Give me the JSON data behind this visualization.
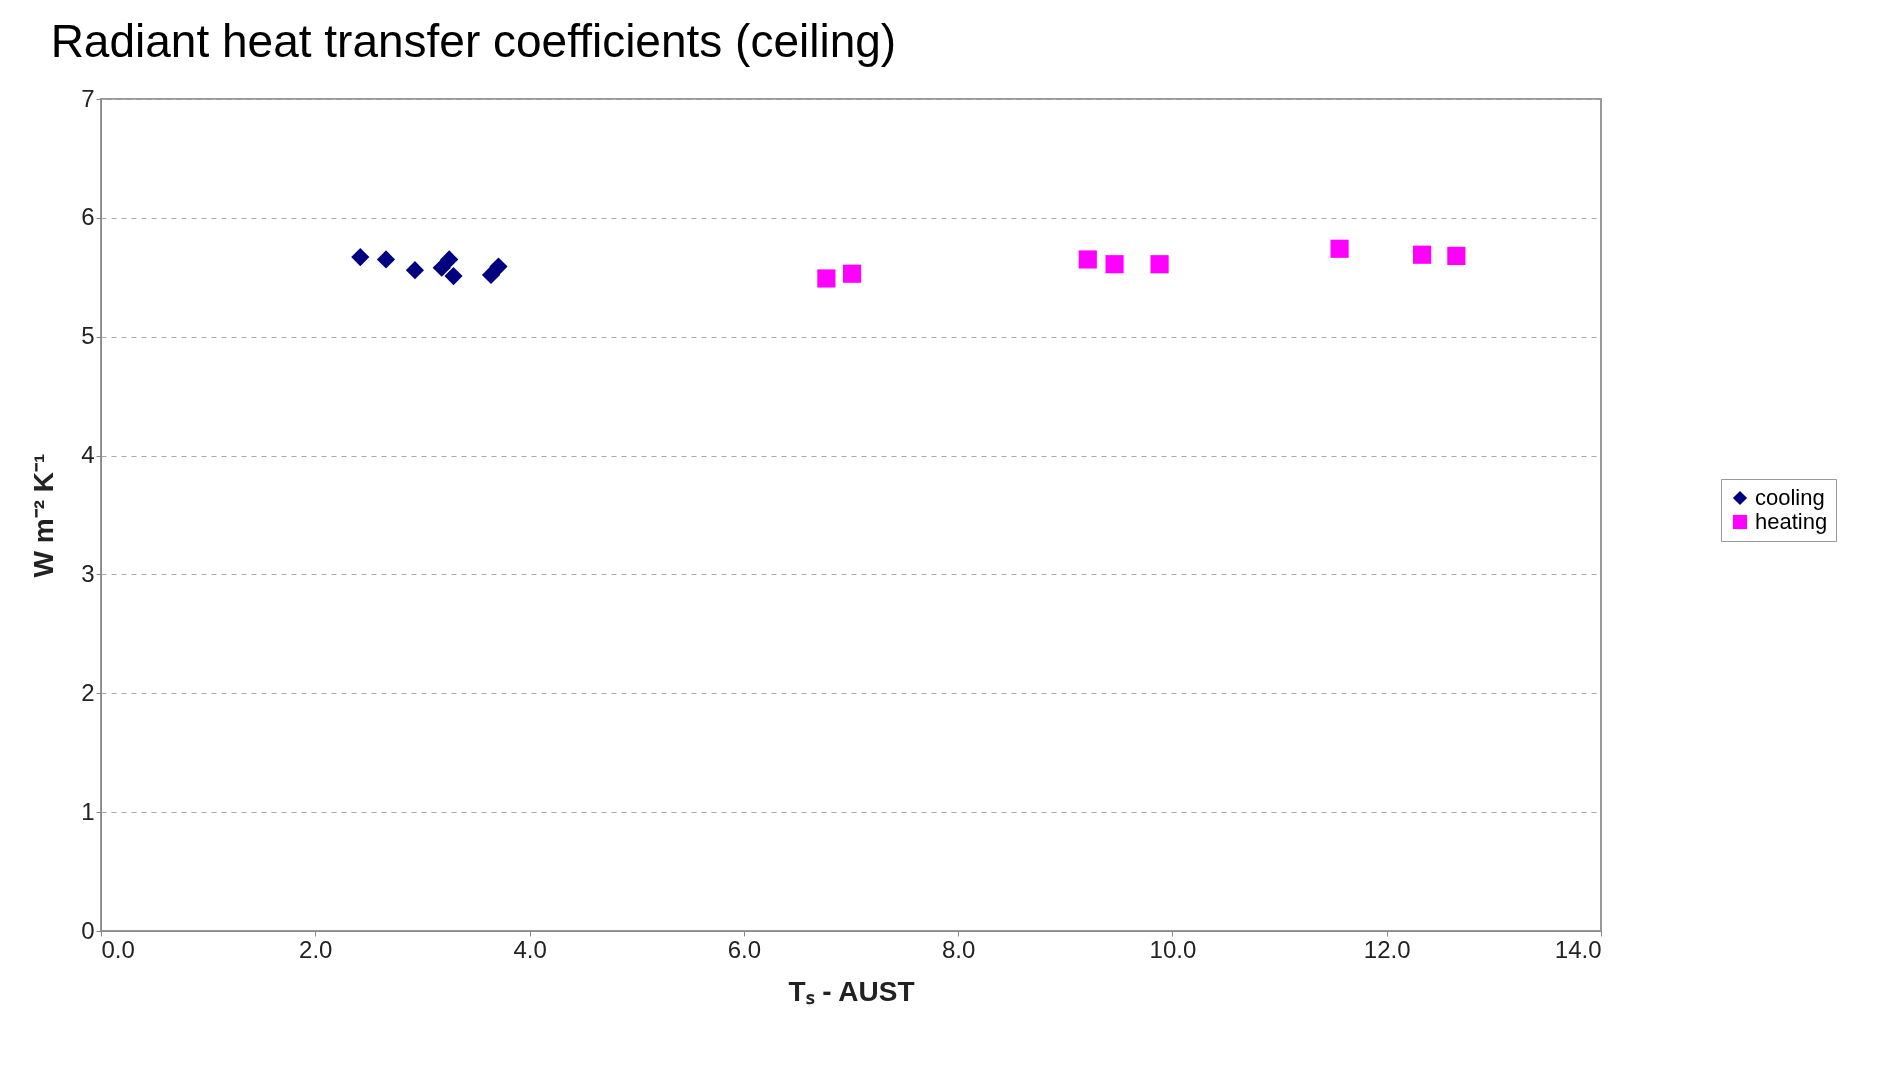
{
  "chart_data": {
    "type": "scatter",
    "title": "Radiant heat transfer coefficients (ceiling)",
    "xlabel": "Tₛ - AUST",
    "ylabel": "W m⁻² K⁻¹",
    "series": [
      {
        "name": "cooling",
        "color": "#000080",
        "marker": "diamond",
        "x": [
          2.42,
          2.66,
          2.93,
          3.18,
          3.25,
          3.29,
          3.64,
          3.71
        ],
        "values": [
          5.67,
          5.65,
          5.56,
          5.58,
          5.65,
          5.51,
          5.52,
          5.59
        ]
      },
      {
        "name": "heating",
        "color": "#ff00ff",
        "marker": "square",
        "x": [
          6.77,
          7.01,
          9.21,
          9.46,
          9.88,
          11.56,
          12.33,
          12.65
        ],
        "values": [
          5.49,
          5.53,
          5.65,
          5.61,
          5.61,
          5.74,
          5.69,
          5.68
        ]
      }
    ],
    "xlim": [
      0,
      14
    ],
    "xticks": [
      {
        "value": 0,
        "label": "0.0"
      },
      {
        "value": 2,
        "label": "2.0"
      },
      {
        "value": 4,
        "label": "4.0"
      },
      {
        "value": 6,
        "label": "6.0"
      },
      {
        "value": 8,
        "label": "8.0"
      },
      {
        "value": 10,
        "label": "10.0"
      },
      {
        "value": 12,
        "label": "12.0"
      },
      {
        "value": 14,
        "label": "14.0"
      }
    ],
    "ylim": [
      0,
      7
    ],
    "yticks": [
      0,
      1,
      2,
      3,
      4,
      5,
      6,
      7
    ],
    "grid": "y",
    "legend": "right"
  }
}
